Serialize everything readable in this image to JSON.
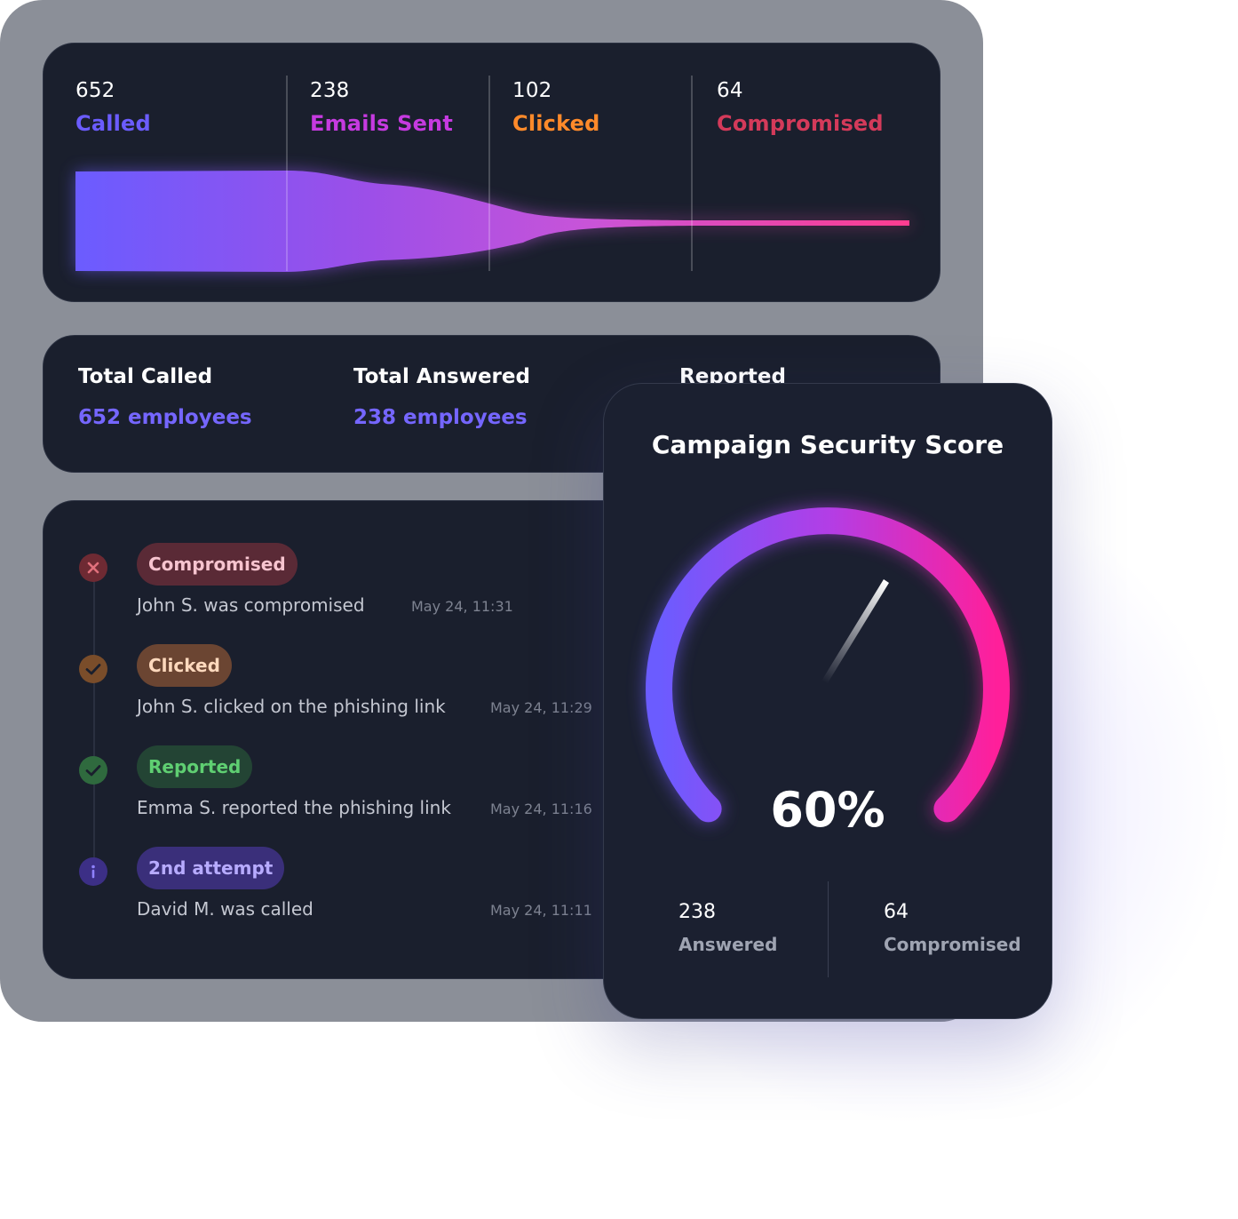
{
  "funnel": {
    "stages": [
      {
        "value": "652",
        "label": "Called",
        "color": "#6b5cff"
      },
      {
        "value": "238",
        "label": "Emails Sent",
        "color": "#c63ae0"
      },
      {
        "value": "102",
        "label": "Clicked",
        "color": "#ff8a2a"
      },
      {
        "value": "64",
        "label": "Compromised",
        "color": "#d43a5a"
      }
    ]
  },
  "totals": [
    {
      "title": "Total Called",
      "value": "652 employees"
    },
    {
      "title": "Total Answered",
      "value": "238 employees"
    },
    {
      "title": "Reported",
      "value": ""
    }
  ],
  "activity": [
    {
      "status": "Compromised",
      "icon": "x-circle-icon",
      "text": "John S. was compromised",
      "time": "May 24, 11:31",
      "badge_bg": "#5a2a36",
      "badge_fg": "#f7c4cf",
      "icon_bg": "#6e2a33",
      "icon_fg": "#e0707c"
    },
    {
      "status": "Clicked",
      "icon": "check-circle-icon",
      "text": "John S. clicked on the phishing link",
      "time": "May 24, 11:29",
      "badge_bg": "#6b4532",
      "badge_fg": "#ffd9bd",
      "icon_bg": "#7a4d2a",
      "icon_fg": "#1a1f2d"
    },
    {
      "status": "Reported",
      "icon": "check-circle-icon",
      "text": "Emma S. reported the phishing link",
      "time": "May 24, 11:16",
      "badge_bg": "#234434",
      "badge_fg": "#5fcf72",
      "icon_bg": "#2f6a3e",
      "icon_fg": "#1a1f2d"
    },
    {
      "status": "2nd attempt",
      "icon": "info-circle-icon",
      "text": "David M. was called",
      "time": "May 24, 11:11",
      "badge_bg": "#3a2f7a",
      "badge_fg": "#b7abff",
      "icon_bg": "#3c2f86",
      "icon_fg": "#8f82ff"
    }
  ],
  "score": {
    "title": "Campaign Security Score",
    "value": "60%",
    "percent": 60,
    "answered_value": "238",
    "answered_label": "Answered",
    "compromised_value": "64",
    "compromised_label": "Compromised"
  }
}
